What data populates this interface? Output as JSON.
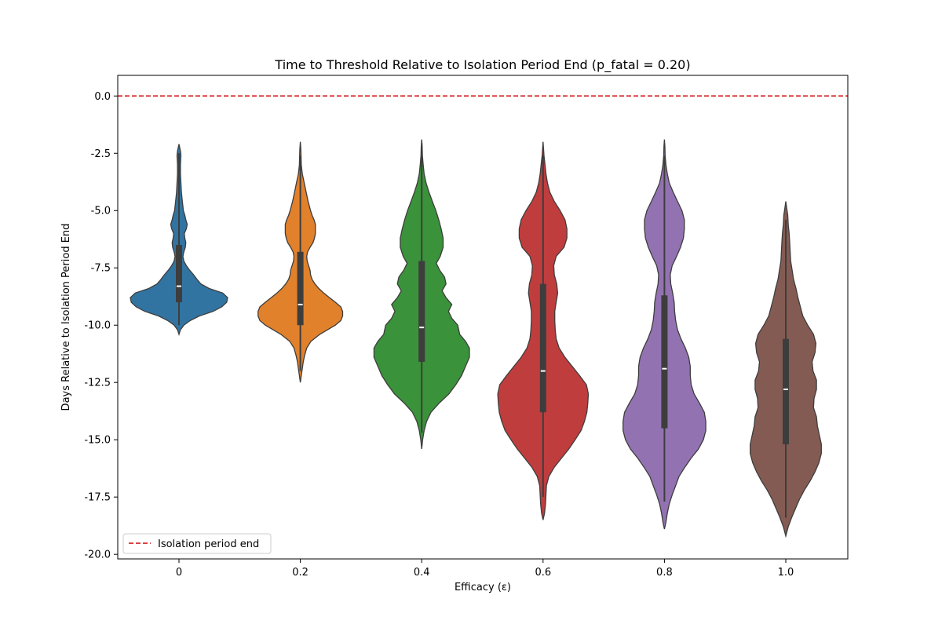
{
  "chart_data": {
    "type": "violin",
    "title": "Time to Threshold Relative to Isolation Period End (p_fatal = 0.20)",
    "xlabel": "Efficacy (ε)",
    "ylabel": "Days Relative to Isolation Period End",
    "categories": [
      "0",
      "0.2",
      "0.4",
      "0.6",
      "0.8",
      "1.0"
    ],
    "y_ticks": [
      "0.0",
      "-2.5",
      "-5.0",
      "-7.5",
      "-10.0",
      "-12.5",
      "-15.0",
      "-17.5",
      "-20.0"
    ],
    "ylim": [
      -20.2,
      0.9
    ],
    "grid": false,
    "legend": {
      "position": "lower-left",
      "entries": [
        "Isolation period end"
      ]
    },
    "reference_line": {
      "y": 0.0,
      "label": "Isolation period end",
      "color": "#d62728",
      "style": "dashed"
    },
    "colors": [
      "#3274a1",
      "#e1812c",
      "#3a923a",
      "#c03d3e",
      "#9372b2",
      "#845b53"
    ],
    "series": [
      {
        "category": "0",
        "min": -10.4,
        "max": -2.1,
        "q1": -9.0,
        "median": -8.3,
        "q3": -6.5,
        "whisker_low": -10.0,
        "whisker_high": -2.5,
        "density_profile": [
          [
            -10.4,
            0.0
          ],
          [
            -10.2,
            0.03
          ],
          [
            -10.0,
            0.1
          ],
          [
            -9.8,
            0.23
          ],
          [
            -9.6,
            0.42
          ],
          [
            -9.4,
            0.7
          ],
          [
            -9.2,
            0.88
          ],
          [
            -9.0,
            0.98
          ],
          [
            -8.8,
            1.0
          ],
          [
            -8.6,
            0.9
          ],
          [
            -8.4,
            0.62
          ],
          [
            -8.2,
            0.45
          ],
          [
            -8.0,
            0.37
          ],
          [
            -7.8,
            0.3
          ],
          [
            -7.6,
            0.22
          ],
          [
            -7.4,
            0.15
          ],
          [
            -7.2,
            0.1
          ],
          [
            -7.0,
            0.08
          ],
          [
            -6.8,
            0.1
          ],
          [
            -6.6,
            0.13
          ],
          [
            -6.4,
            0.14
          ],
          [
            -6.2,
            0.12
          ],
          [
            -6.0,
            0.11
          ],
          [
            -5.8,
            0.15
          ],
          [
            -5.6,
            0.17
          ],
          [
            -5.4,
            0.14
          ],
          [
            -5.2,
            0.12
          ],
          [
            -5.0,
            0.09
          ],
          [
            -4.6,
            0.07
          ],
          [
            -4.2,
            0.05
          ],
          [
            -3.8,
            0.04
          ],
          [
            -3.4,
            0.03
          ],
          [
            -3.0,
            0.03
          ],
          [
            -2.6,
            0.04
          ],
          [
            -2.4,
            0.03
          ],
          [
            -2.1,
            0.0
          ]
        ]
      },
      {
        "category": "0.2",
        "min": -12.5,
        "max": -2.0,
        "q1": -10.0,
        "median": -9.1,
        "q3": -6.8,
        "whisker_low": -12.0,
        "whisker_high": -2.6,
        "density_profile": [
          [
            -12.5,
            0.0
          ],
          [
            -12.2,
            0.02
          ],
          [
            -11.9,
            0.04
          ],
          [
            -11.6,
            0.06
          ],
          [
            -11.3,
            0.09
          ],
          [
            -11.0,
            0.13
          ],
          [
            -10.7,
            0.22
          ],
          [
            -10.4,
            0.4
          ],
          [
            -10.2,
            0.56
          ],
          [
            -10.0,
            0.72
          ],
          [
            -9.8,
            0.83
          ],
          [
            -9.6,
            0.87
          ],
          [
            -9.4,
            0.87
          ],
          [
            -9.2,
            0.83
          ],
          [
            -9.0,
            0.72
          ],
          [
            -8.8,
            0.6
          ],
          [
            -8.6,
            0.48
          ],
          [
            -8.4,
            0.38
          ],
          [
            -8.2,
            0.3
          ],
          [
            -8.0,
            0.24
          ],
          [
            -7.8,
            0.21
          ],
          [
            -7.6,
            0.2
          ],
          [
            -7.4,
            0.17
          ],
          [
            -7.2,
            0.14
          ],
          [
            -7.0,
            0.13
          ],
          [
            -6.8,
            0.15
          ],
          [
            -6.6,
            0.2
          ],
          [
            -6.4,
            0.26
          ],
          [
            -6.2,
            0.29
          ],
          [
            -6.0,
            0.31
          ],
          [
            -5.8,
            0.31
          ],
          [
            -5.6,
            0.31
          ],
          [
            -5.4,
            0.28
          ],
          [
            -5.2,
            0.24
          ],
          [
            -5.0,
            0.21
          ],
          [
            -4.6,
            0.16
          ],
          [
            -4.2,
            0.12
          ],
          [
            -3.8,
            0.08
          ],
          [
            -3.4,
            0.04
          ],
          [
            -3.0,
            0.02
          ],
          [
            -2.6,
            0.015
          ],
          [
            -2.3,
            0.01
          ],
          [
            -2.0,
            0.0
          ]
        ]
      },
      {
        "category": "0.4",
        "min": -15.4,
        "max": -1.9,
        "q1": -11.6,
        "median": -10.1,
        "q3": -7.2,
        "whisker_low": -14.7,
        "whisker_high": -2.3,
        "density_profile": [
          [
            -15.4,
            0.0
          ],
          [
            -15.0,
            0.02
          ],
          [
            -14.6,
            0.05
          ],
          [
            -14.2,
            0.1
          ],
          [
            -13.8,
            0.19
          ],
          [
            -13.4,
            0.36
          ],
          [
            -13.0,
            0.56
          ],
          [
            -12.6,
            0.7
          ],
          [
            -12.2,
            0.82
          ],
          [
            -11.8,
            0.9
          ],
          [
            -11.4,
            0.98
          ],
          [
            -11.0,
            0.98
          ],
          [
            -10.7,
            0.9
          ],
          [
            -10.4,
            0.78
          ],
          [
            -10.0,
            0.74
          ],
          [
            -9.7,
            0.62
          ],
          [
            -9.4,
            0.55
          ],
          [
            -9.1,
            0.62
          ],
          [
            -8.8,
            0.5
          ],
          [
            -8.5,
            0.42
          ],
          [
            -8.2,
            0.5
          ],
          [
            -7.9,
            0.47
          ],
          [
            -7.6,
            0.37
          ],
          [
            -7.3,
            0.3
          ],
          [
            -7.0,
            0.38
          ],
          [
            -6.6,
            0.44
          ],
          [
            -6.2,
            0.44
          ],
          [
            -5.8,
            0.4
          ],
          [
            -5.4,
            0.35
          ],
          [
            -5.0,
            0.29
          ],
          [
            -4.6,
            0.22
          ],
          [
            -4.2,
            0.15
          ],
          [
            -3.8,
            0.09
          ],
          [
            -3.4,
            0.05
          ],
          [
            -3.0,
            0.03
          ],
          [
            -2.6,
            0.015
          ],
          [
            -2.2,
            0.01
          ],
          [
            -1.9,
            0.0
          ]
        ]
      },
      {
        "category": "0.6",
        "min": -18.5,
        "max": -2.0,
        "q1": -13.8,
        "median": -12.0,
        "q3": -8.2,
        "whisker_low": -17.5,
        "whisker_high": -2.6,
        "density_profile": [
          [
            -18.5,
            0.0
          ],
          [
            -18.2,
            0.03
          ],
          [
            -17.8,
            0.05
          ],
          [
            -17.4,
            0.06
          ],
          [
            -17.0,
            0.07
          ],
          [
            -16.6,
            0.12
          ],
          [
            -16.2,
            0.23
          ],
          [
            -15.8,
            0.38
          ],
          [
            -15.4,
            0.53
          ],
          [
            -15.0,
            0.66
          ],
          [
            -14.6,
            0.78
          ],
          [
            -14.2,
            0.85
          ],
          [
            -13.8,
            0.9
          ],
          [
            -13.4,
            0.92
          ],
          [
            -13.0,
            0.93
          ],
          [
            -12.6,
            0.89
          ],
          [
            -12.2,
            0.75
          ],
          [
            -11.8,
            0.6
          ],
          [
            -11.4,
            0.45
          ],
          [
            -11.0,
            0.33
          ],
          [
            -10.6,
            0.27
          ],
          [
            -10.2,
            0.25
          ],
          [
            -9.8,
            0.24
          ],
          [
            -9.4,
            0.24
          ],
          [
            -9.0,
            0.27
          ],
          [
            -8.6,
            0.3
          ],
          [
            -8.2,
            0.28
          ],
          [
            -7.8,
            0.23
          ],
          [
            -7.4,
            0.22
          ],
          [
            -7.0,
            0.27
          ],
          [
            -6.6,
            0.43
          ],
          [
            -6.2,
            0.49
          ],
          [
            -5.8,
            0.49
          ],
          [
            -5.4,
            0.45
          ],
          [
            -5.0,
            0.35
          ],
          [
            -4.6,
            0.23
          ],
          [
            -4.2,
            0.14
          ],
          [
            -3.8,
            0.09
          ],
          [
            -3.4,
            0.06
          ],
          [
            -3.0,
            0.04
          ],
          [
            -2.6,
            0.02
          ],
          [
            -2.3,
            0.01
          ],
          [
            -2.0,
            0.0
          ]
        ]
      },
      {
        "category": "0.8",
        "min": -18.9,
        "max": -1.9,
        "q1": -14.5,
        "median": -11.9,
        "q3": -8.7,
        "whisker_low": -17.7,
        "whisker_high": -2.6,
        "density_profile": [
          [
            -18.9,
            0.0
          ],
          [
            -18.6,
            0.03
          ],
          [
            -18.2,
            0.06
          ],
          [
            -17.8,
            0.1
          ],
          [
            -17.4,
            0.16
          ],
          [
            -17.0,
            0.23
          ],
          [
            -16.6,
            0.3
          ],
          [
            -16.2,
            0.42
          ],
          [
            -15.8,
            0.55
          ],
          [
            -15.4,
            0.7
          ],
          [
            -15.0,
            0.8
          ],
          [
            -14.6,
            0.85
          ],
          [
            -14.2,
            0.85
          ],
          [
            -13.8,
            0.82
          ],
          [
            -13.4,
            0.72
          ],
          [
            -13.0,
            0.61
          ],
          [
            -12.6,
            0.55
          ],
          [
            -12.2,
            0.53
          ],
          [
            -11.8,
            0.53
          ],
          [
            -11.4,
            0.5
          ],
          [
            -11.0,
            0.43
          ],
          [
            -10.6,
            0.34
          ],
          [
            -10.2,
            0.27
          ],
          [
            -9.8,
            0.23
          ],
          [
            -9.4,
            0.21
          ],
          [
            -9.0,
            0.2
          ],
          [
            -8.6,
            0.17
          ],
          [
            -8.2,
            0.13
          ],
          [
            -7.8,
            0.12
          ],
          [
            -7.4,
            0.16
          ],
          [
            -7.0,
            0.25
          ],
          [
            -6.6,
            0.33
          ],
          [
            -6.2,
            0.39
          ],
          [
            -5.8,
            0.41
          ],
          [
            -5.4,
            0.41
          ],
          [
            -5.0,
            0.36
          ],
          [
            -4.6,
            0.27
          ],
          [
            -4.2,
            0.18
          ],
          [
            -3.8,
            0.1
          ],
          [
            -3.4,
            0.06
          ],
          [
            -3.0,
            0.03
          ],
          [
            -2.6,
            0.015
          ],
          [
            -2.2,
            0.01
          ],
          [
            -1.9,
            0.0
          ]
        ]
      },
      {
        "category": "1.0",
        "min": -19.2,
        "max": -4.6,
        "q1": -15.2,
        "median": -12.8,
        "q3": -10.6,
        "whisker_low": -18.4,
        "whisker_high": -5.4,
        "density_profile": [
          [
            -19.2,
            0.0
          ],
          [
            -18.8,
            0.05
          ],
          [
            -18.4,
            0.12
          ],
          [
            -18.0,
            0.2
          ],
          [
            -17.6,
            0.28
          ],
          [
            -17.2,
            0.38
          ],
          [
            -16.8,
            0.5
          ],
          [
            -16.4,
            0.6
          ],
          [
            -16.0,
            0.68
          ],
          [
            -15.6,
            0.73
          ],
          [
            -15.2,
            0.73
          ],
          [
            -14.8,
            0.69
          ],
          [
            -14.4,
            0.65
          ],
          [
            -14.0,
            0.63
          ],
          [
            -13.6,
            0.57
          ],
          [
            -13.2,
            0.58
          ],
          [
            -12.8,
            0.63
          ],
          [
            -12.4,
            0.63
          ],
          [
            -12.0,
            0.56
          ],
          [
            -11.6,
            0.54
          ],
          [
            -11.2,
            0.6
          ],
          [
            -10.8,
            0.62
          ],
          [
            -10.4,
            0.57
          ],
          [
            -10.0,
            0.45
          ],
          [
            -9.6,
            0.35
          ],
          [
            -9.2,
            0.3
          ],
          [
            -8.8,
            0.25
          ],
          [
            -8.4,
            0.21
          ],
          [
            -8.0,
            0.16
          ],
          [
            -7.6,
            0.13
          ],
          [
            -7.2,
            0.1
          ],
          [
            -6.8,
            0.09
          ],
          [
            -6.4,
            0.08
          ],
          [
            -6.0,
            0.07
          ],
          [
            -5.6,
            0.05
          ],
          [
            -5.2,
            0.04
          ],
          [
            -4.9,
            0.02
          ],
          [
            -4.6,
            0.0
          ]
        ]
      }
    ]
  }
}
